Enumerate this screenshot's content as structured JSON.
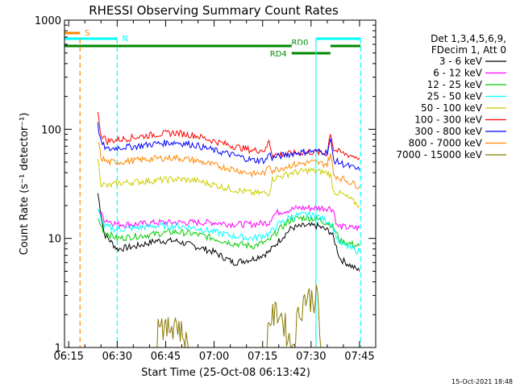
{
  "chart_data": {
    "type": "line",
    "title": "RHESSI Observing Summary Count Rates",
    "xlabel": "Start Time (25-Oct-08 06:13:42)",
    "ylabel": "Count Rate (s⁻¹ detector⁻¹)",
    "y_scale": "log",
    "ylim": [
      1,
      1000
    ],
    "xlim_minutes": [
      13.7,
      110
    ],
    "x_ticks": [
      {
        "label": "06:15",
        "min": 15
      },
      {
        "label": "06:30",
        "min": 30
      },
      {
        "label": "06:45",
        "min": 45
      },
      {
        "label": "07:00",
        "min": 60
      },
      {
        "label": "07:15",
        "min": 75
      },
      {
        "label": "07:30",
        "min": 90
      },
      {
        "label": "07:45",
        "min": 105
      }
    ],
    "y_ticks": [
      {
        "label": "1",
        "value": 1
      },
      {
        "label": "10",
        "value": 10
      },
      {
        "label": "100",
        "value": 100
      },
      {
        "label": "1000",
        "value": 1000
      }
    ],
    "legend_header": [
      "Det 1,3,4,5,6,9,",
      "FDecim 1, Att 0"
    ],
    "legend_position": "right",
    "grid": false,
    "series": [
      {
        "name": "3 - 6 keV",
        "color": "#000000",
        "points": [
          [
            24,
            26
          ],
          [
            26,
            11
          ],
          [
            30,
            8
          ],
          [
            36,
            8.5
          ],
          [
            42,
            9.5
          ],
          [
            48,
            9.5
          ],
          [
            54,
            8.5
          ],
          [
            60,
            7.5
          ],
          [
            66,
            6
          ],
          [
            72,
            6.5
          ],
          [
            77,
            7.5
          ],
          [
            80,
            9.5
          ],
          [
            84,
            12.5
          ],
          [
            88,
            13
          ],
          [
            92,
            13
          ],
          [
            96,
            11.5
          ],
          [
            97,
            10
          ],
          [
            99,
            6.5
          ],
          [
            105,
            5
          ]
        ]
      },
      {
        "name": "6 - 12 keV",
        "color": "#ff00ff",
        "points": [
          [
            24,
            19
          ],
          [
            26,
            15
          ],
          [
            30,
            13.5
          ],
          [
            36,
            13.5
          ],
          [
            42,
            14
          ],
          [
            48,
            14
          ],
          [
            54,
            14
          ],
          [
            60,
            14
          ],
          [
            66,
            13.5
          ],
          [
            72,
            13.5
          ],
          [
            77,
            14
          ],
          [
            78,
            16
          ],
          [
            80,
            17.5
          ],
          [
            86,
            19
          ],
          [
            92,
            19
          ],
          [
            96,
            19
          ],
          [
            97,
            18
          ],
          [
            98,
            13
          ],
          [
            102,
            12.5
          ],
          [
            105,
            12.5
          ]
        ]
      },
      {
        "name": "12 - 25 keV",
        "color": "#00cc00",
        "points": [
          [
            24,
            15
          ],
          [
            26,
            11.5
          ],
          [
            30,
            10
          ],
          [
            36,
            10.5
          ],
          [
            42,
            11
          ],
          [
            48,
            11.5
          ],
          [
            54,
            11
          ],
          [
            60,
            10
          ],
          [
            66,
            9
          ],
          [
            72,
            8.5
          ],
          [
            77,
            9.5
          ],
          [
            80,
            12
          ],
          [
            84,
            15
          ],
          [
            88,
            15.5
          ],
          [
            92,
            15
          ],
          [
            96,
            13.5
          ],
          [
            97,
            12.5
          ],
          [
            99,
            9.5
          ],
          [
            105,
            8.5
          ]
        ]
      },
      {
        "name": "25 - 50 keV",
        "color": "#00ffff",
        "points": [
          [
            24,
            18
          ],
          [
            26,
            13
          ],
          [
            30,
            12
          ],
          [
            36,
            12.5
          ],
          [
            42,
            13
          ],
          [
            48,
            13
          ],
          [
            54,
            12.5
          ],
          [
            60,
            11.5
          ],
          [
            66,
            10.5
          ],
          [
            72,
            10
          ],
          [
            77,
            11
          ],
          [
            80,
            13.5
          ],
          [
            84,
            16
          ],
          [
            88,
            16.5
          ],
          [
            92,
            16
          ],
          [
            96,
            14
          ],
          [
            97,
            12
          ],
          [
            99,
            9
          ],
          [
            105,
            7.5
          ]
        ]
      },
      {
        "name": "50 - 100 keV",
        "color": "#cccc00",
        "points": [
          [
            24,
            55
          ],
          [
            25,
            32
          ],
          [
            27,
            30
          ],
          [
            30,
            32
          ],
          [
            36,
            33
          ],
          [
            42,
            34
          ],
          [
            48,
            35
          ],
          [
            54,
            34
          ],
          [
            60,
            31
          ],
          [
            66,
            28
          ],
          [
            72,
            26
          ],
          [
            77,
            26
          ],
          [
            78,
            35
          ],
          [
            84,
            40
          ],
          [
            90,
            42
          ],
          [
            95,
            40
          ],
          [
            96,
            38
          ],
          [
            97,
            27
          ],
          [
            100,
            25
          ],
          [
            105,
            20
          ]
        ]
      },
      {
        "name": "100 - 300 keV",
        "color": "#ff0000",
        "points": [
          [
            24,
            140
          ],
          [
            25,
            90
          ],
          [
            27,
            78
          ],
          [
            30,
            80
          ],
          [
            36,
            85
          ],
          [
            42,
            90
          ],
          [
            48,
            93
          ],
          [
            54,
            88
          ],
          [
            60,
            78
          ],
          [
            66,
            70
          ],
          [
            72,
            64
          ],
          [
            76,
            65
          ],
          [
            77,
            80
          ],
          [
            78,
            58
          ],
          [
            84,
            60
          ],
          [
            90,
            62
          ],
          [
            95,
            60
          ],
          [
            96,
            95
          ],
          [
            97,
            65
          ],
          [
            100,
            60
          ],
          [
            105,
            55
          ]
        ]
      },
      {
        "name": "300 - 800 keV",
        "color": "#0000ff",
        "points": [
          [
            24,
            110
          ],
          [
            25,
            75
          ],
          [
            27,
            65
          ],
          [
            30,
            68
          ],
          [
            36,
            70
          ],
          [
            42,
            74
          ],
          [
            48,
            76
          ],
          [
            54,
            72
          ],
          [
            60,
            64
          ],
          [
            66,
            58
          ],
          [
            72,
            52
          ],
          [
            76,
            52
          ],
          [
            77,
            60
          ],
          [
            78,
            55
          ],
          [
            84,
            60
          ],
          [
            90,
            63
          ],
          [
            95,
            62
          ],
          [
            96,
            80
          ],
          [
            97,
            52
          ],
          [
            100,
            48
          ],
          [
            105,
            42
          ]
        ]
      },
      {
        "name": "800 - 7000 keV",
        "color": "#ff8800",
        "points": [
          [
            24,
            80
          ],
          [
            25,
            55
          ],
          [
            27,
            50
          ],
          [
            30,
            50
          ],
          [
            36,
            52
          ],
          [
            42,
            54
          ],
          [
            48,
            55
          ],
          [
            54,
            52
          ],
          [
            60,
            47
          ],
          [
            66,
            43
          ],
          [
            72,
            39
          ],
          [
            76,
            40
          ],
          [
            77,
            48
          ],
          [
            78,
            42
          ],
          [
            84,
            47
          ],
          [
            90,
            50
          ],
          [
            95,
            48
          ],
          [
            96,
            60
          ],
          [
            97,
            38
          ],
          [
            100,
            35
          ],
          [
            105,
            30
          ]
        ]
      },
      {
        "name": "7000 - 15000 keV",
        "color": "#887700",
        "points": [
          [
            42,
            1
          ],
          [
            43,
            2
          ],
          [
            45,
            1.4
          ],
          [
            48,
            1.8
          ],
          [
            51,
            1.2
          ],
          [
            52,
            1
          ],
          [
            76,
            1
          ],
          [
            77,
            1.8
          ],
          [
            80,
            2.2
          ],
          [
            82,
            1.6
          ],
          [
            84,
            1
          ],
          [
            86,
            2
          ],
          [
            88,
            2.9
          ],
          [
            92,
            2.9
          ],
          [
            93,
            1
          ]
        ]
      }
    ],
    "annotations": {
      "vertical_lines": [
        {
          "min": 18.5,
          "color": "#ff8800",
          "style": "dashed"
        },
        {
          "min": 30,
          "color": "#00ffff",
          "style": "dashed"
        },
        {
          "min": 91.5,
          "color": "#00ffff",
          "style": "solid"
        },
        {
          "min": 105.3,
          "color": "#00ffff",
          "style": "dashed"
        }
      ],
      "flag_bars": [
        {
          "label": "S",
          "color": "#ff8800",
          "start": 13.7,
          "end": 18.5,
          "level": 1
        },
        {
          "label": "N",
          "color": "#00ffff",
          "start": 13.7,
          "end": 30,
          "level": 2
        },
        {
          "label": "",
          "color": "#00ffff",
          "start": 91.5,
          "end": 105.3,
          "level": 2
        },
        {
          "label": "RD0",
          "color": "#008800",
          "start": 13.7,
          "end": 105.3,
          "level": 3
        },
        {
          "label": "RD4",
          "color": "#008800",
          "start": 84,
          "end": 96,
          "level": 4
        }
      ]
    },
    "timestamp": "15-Oct-2021 18:48"
  }
}
